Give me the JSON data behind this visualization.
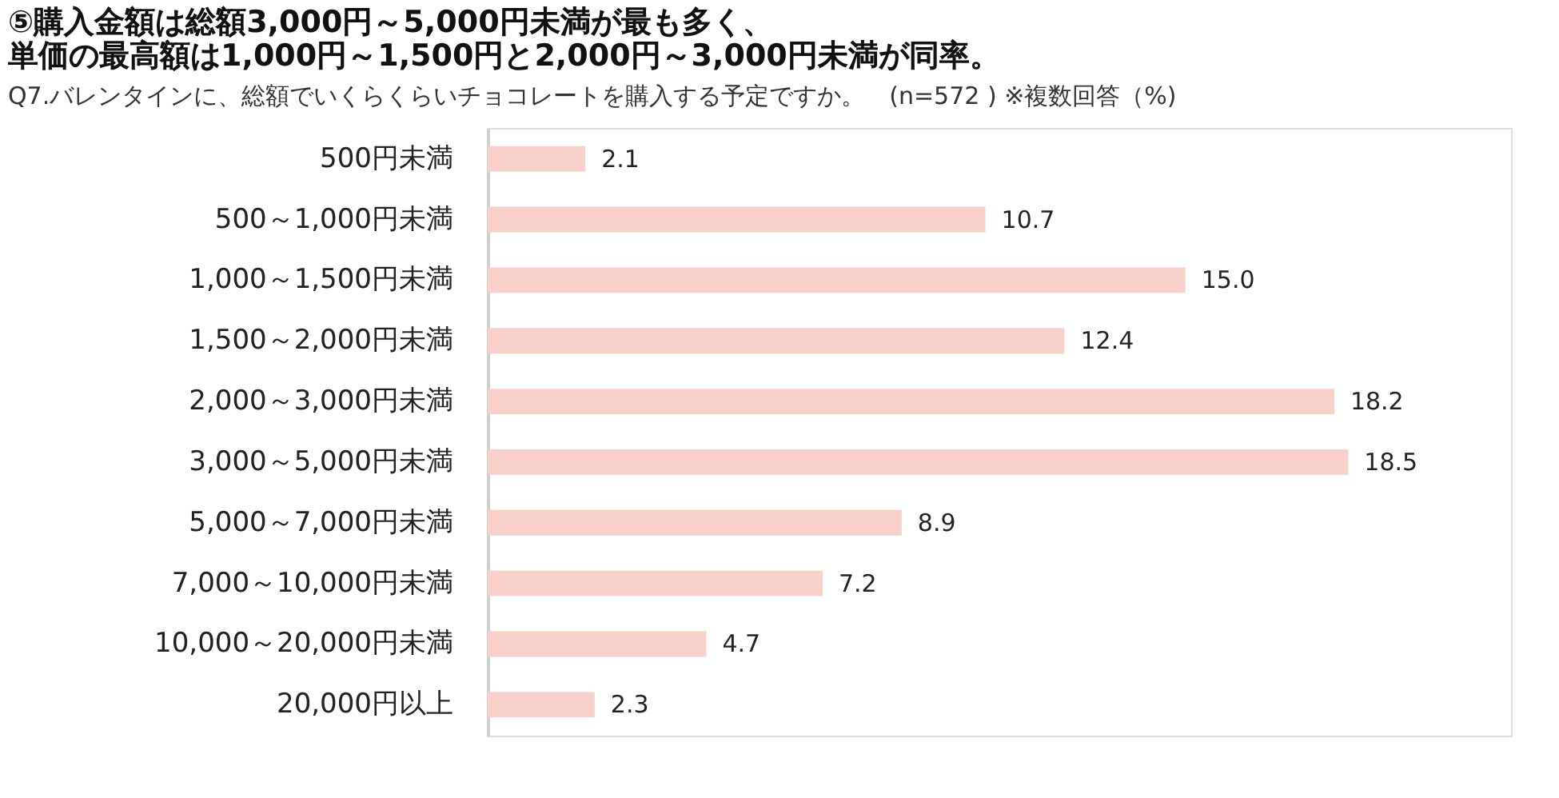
{
  "chart_data": {
    "type": "bar",
    "orientation": "horizontal",
    "title": [
      "⑤購入金額は総額3,000円～5,000円未満が最も多く、",
      "　単価の最高額は1,000円～1,500円と2,000円～3,000円未満が同率。"
    ],
    "subtitle": "Q7.バレンタインに、総額でいくらくらいチョコレートを購入する予定ですか。　(n=572 ) ※複数回答（%)",
    "categories": [
      "500円未満",
      "500～1,000円未満",
      "1,000～1,500円未満",
      "1,500～2,000円未満",
      "2,000～3,000円未満",
      "3,000～5,000円未満",
      "5,000～7,000円未満",
      "7,000～10,000円未満",
      "10,000～20,000円未満",
      "20,000円以上"
    ],
    "values": [
      2.1,
      10.7,
      15.0,
      12.4,
      18.2,
      18.5,
      8.9,
      7.2,
      4.7,
      2.3
    ],
    "color": "#f9d0ca",
    "xlim": [
      0,
      22
    ],
    "value_labels": [
      "2.1",
      "10.7",
      "15.0",
      "12.4",
      "18.2",
      "18.5",
      "8.9",
      "7.2",
      "4.7",
      "2.3"
    ],
    "grid": false
  }
}
